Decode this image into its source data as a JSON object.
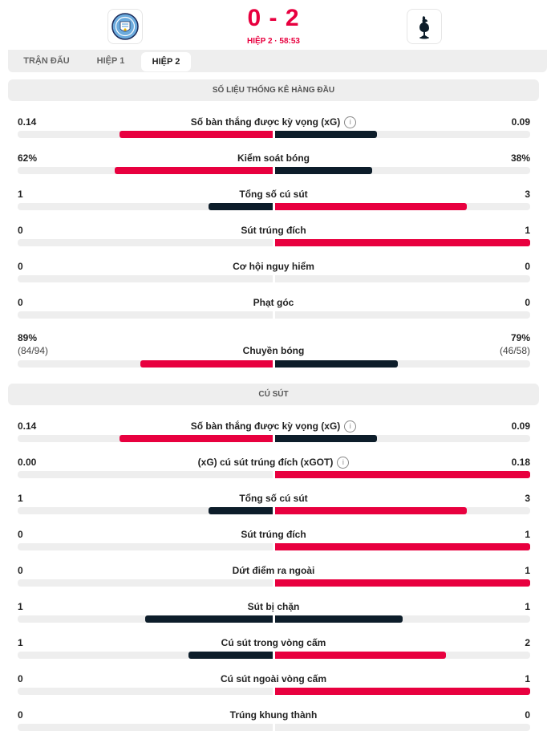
{
  "match": {
    "score": "0 - 2",
    "status": "HIỆP 2 · 58:53"
  },
  "colors": {
    "home": "#e8003f",
    "away": "#0d1d2a",
    "track": "#eeeeee"
  },
  "tabs": [
    {
      "label": "TRẬN ĐẤU",
      "active": false
    },
    {
      "label": "HIỆP 1",
      "active": false
    },
    {
      "label": "HIỆP 2",
      "active": true
    }
  ],
  "sections": [
    {
      "title": "SỐ LIỆU THỐNG KÊ HÀNG ĐẦU"
    },
    {
      "title": "CÚ SÚT"
    }
  ],
  "top_stats": [
    {
      "label": "Số bàn thắng được kỳ vọng (xG)",
      "home": "0.14",
      "away": "0.09",
      "info": true,
      "home_share": 0.6,
      "away_share": 0.4,
      "home_color": "home",
      "away_color": "away"
    },
    {
      "label": "Kiểm soát bóng",
      "home": "62%",
      "away": "38%",
      "home_share": 0.62,
      "away_share": 0.38,
      "home_color": "home",
      "away_color": "away"
    },
    {
      "label": "Tổng số cú sút",
      "home": "1",
      "away": "3",
      "home_share": 0.25,
      "away_share": 0.75,
      "home_color": "away",
      "away_color": "home"
    },
    {
      "label": "Sút trúng đích",
      "home": "0",
      "away": "1",
      "home_share": 0,
      "away_share": 1,
      "home_color": "away",
      "away_color": "home"
    },
    {
      "label": "Cơ hội nguy hiểm",
      "home": "0",
      "away": "0",
      "home_share": 0,
      "away_share": 0,
      "home_color": "home",
      "away_color": "away"
    },
    {
      "label": "Phạt góc",
      "home": "0",
      "away": "0",
      "home_share": 0,
      "away_share": 0,
      "home_color": "home",
      "away_color": "away"
    },
    {
      "label": "Chuyền bóng",
      "home": "89%",
      "away": "79%",
      "home_sub": "(84/94)",
      "away_sub": "(46/58)",
      "home_share": 0.52,
      "away_share": 0.48,
      "home_color": "home",
      "away_color": "away"
    }
  ],
  "shot_stats": [
    {
      "label": "Số bàn thắng được kỳ vọng (xG)",
      "home": "0.14",
      "away": "0.09",
      "info": true,
      "home_share": 0.6,
      "away_share": 0.4,
      "home_color": "home",
      "away_color": "away"
    },
    {
      "label": "(xG) cú sút trúng đích (xGOT)",
      "home": "0.00",
      "away": "0.18",
      "info": true,
      "home_share": 0,
      "away_share": 1,
      "home_color": "away",
      "away_color": "home"
    },
    {
      "label": "Tổng số cú sút",
      "home": "1",
      "away": "3",
      "home_share": 0.25,
      "away_share": 0.75,
      "home_color": "away",
      "away_color": "home"
    },
    {
      "label": "Sút trúng đích",
      "home": "0",
      "away": "1",
      "home_share": 0,
      "away_share": 1,
      "home_color": "away",
      "away_color": "home"
    },
    {
      "label": "Dứt điểm ra ngoài",
      "home": "0",
      "away": "1",
      "home_share": 0,
      "away_share": 1,
      "home_color": "away",
      "away_color": "home"
    },
    {
      "label": "Sút bị chặn",
      "home": "1",
      "away": "1",
      "home_share": 0.5,
      "away_share": 0.5,
      "home_color": "away",
      "away_color": "away"
    },
    {
      "label": "Cú sút trong vòng cấm",
      "home": "1",
      "away": "2",
      "home_share": 0.33,
      "away_share": 0.67,
      "home_color": "away",
      "away_color": "home"
    },
    {
      "label": "Cú sút ngoài vòng cấm",
      "home": "0",
      "away": "1",
      "home_share": 0,
      "away_share": 1,
      "home_color": "away",
      "away_color": "home"
    },
    {
      "label": "Trúng khung thành",
      "home": "0",
      "away": "0",
      "home_share": 0,
      "away_share": 0,
      "home_color": "home",
      "away_color": "away"
    }
  ]
}
